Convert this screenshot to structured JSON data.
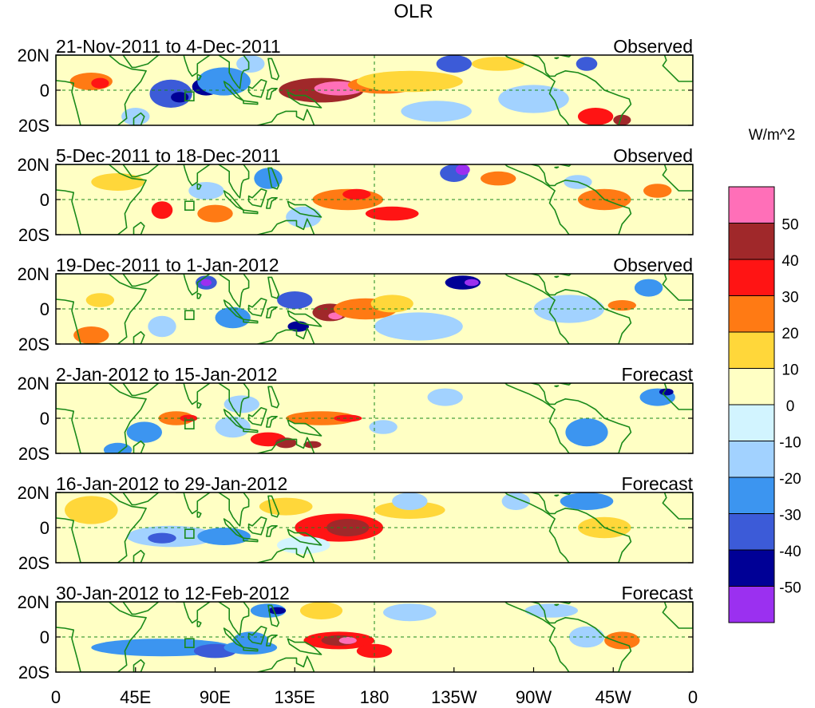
{
  "title": "OLR",
  "units": "W/m^2",
  "chart_data": {
    "type": "heatmap",
    "variable": "OLR anomaly",
    "lat_labels": [
      "20N",
      "0",
      "20S"
    ],
    "lon_labels": [
      "0",
      "45E",
      "90E",
      "135E",
      "180",
      "135W",
      "90W",
      "45W",
      "0"
    ],
    "colorbar": {
      "levels": [
        50,
        40,
        30,
        20,
        10,
        0,
        -10,
        -20,
        -30,
        -40,
        -50
      ],
      "colors": [
        "#ff6fb8",
        "#a0282a",
        "#ff1414",
        "#ff7a14",
        "#ffd73a",
        "#ffffc4",
        "#d2f4ff",
        "#a2d2ff",
        "#3c95f0",
        "#3c5bd8",
        "#000096",
        "#9b30f0"
      ]
    },
    "panels": [
      {
        "period": "21-Nov-2011 to 4-Dec-2011",
        "kind": "Observed",
        "blobs": [
          [
            150,
            0,
            24,
            7,
            45
          ],
          [
            160,
            1,
            14,
            4,
            55
          ],
          [
            185,
            3,
            20,
            5,
            20
          ],
          [
            200,
            5,
            30,
            6,
            15
          ],
          [
            20,
            5,
            12,
            5,
            28
          ],
          [
            25,
            4,
            5,
            3,
            38
          ],
          [
            65,
            -2,
            12,
            8,
            -32
          ],
          [
            85,
            2,
            8,
            5,
            -42
          ],
          [
            70,
            -4,
            5,
            3,
            -44
          ],
          [
            95,
            5,
            15,
            8,
            -22
          ],
          [
            110,
            15,
            8,
            5,
            -18
          ],
          [
            225,
            15,
            10,
            5,
            -36
          ],
          [
            250,
            15,
            15,
            4,
            18
          ],
          [
            270,
            -5,
            20,
            8,
            -15
          ],
          [
            300,
            15,
            6,
            4,
            -32
          ],
          [
            305,
            -15,
            10,
            5,
            30
          ],
          [
            320,
            -17,
            5,
            3,
            42
          ],
          [
            215,
            -12,
            20,
            6,
            -12
          ],
          [
            45,
            -15,
            8,
            5,
            -15
          ]
        ]
      },
      {
        "period": "5-Dec-2011 to 18-Dec-2011",
        "kind": "Observed",
        "blobs": [
          [
            165,
            0,
            20,
            6,
            25
          ],
          [
            190,
            -8,
            15,
            4,
            30
          ],
          [
            170,
            3,
            8,
            3,
            36
          ],
          [
            225,
            15,
            8,
            5,
            -38
          ],
          [
            230,
            17,
            4,
            3,
            -55
          ],
          [
            60,
            -6,
            6,
            5,
            30
          ],
          [
            90,
            -8,
            10,
            5,
            22
          ],
          [
            120,
            12,
            8,
            6,
            -30
          ],
          [
            85,
            5,
            10,
            5,
            -15
          ],
          [
            295,
            10,
            8,
            4,
            -20
          ],
          [
            310,
            0,
            15,
            6,
            22
          ],
          [
            340,
            5,
            8,
            4,
            20
          ],
          [
            35,
            10,
            15,
            5,
            14
          ],
          [
            250,
            12,
            10,
            4,
            20
          ],
          [
            140,
            -10,
            10,
            6,
            -15
          ]
        ]
      },
      {
        "period": "19-Dec-2011 to 1-Jan-2012",
        "kind": "Observed",
        "blobs": [
          [
            155,
            -2,
            10,
            5,
            43
          ],
          [
            158,
            -4,
            4,
            2,
            55
          ],
          [
            175,
            0,
            18,
            6,
            22
          ],
          [
            190,
            3,
            12,
            5,
            18
          ],
          [
            85,
            15,
            6,
            4,
            -40
          ],
          [
            85,
            15,
            3,
            2,
            -55
          ],
          [
            135,
            5,
            10,
            5,
            -35
          ],
          [
            137,
            -10,
            6,
            3,
            -45
          ],
          [
            100,
            -5,
            10,
            6,
            -30
          ],
          [
            60,
            -10,
            8,
            6,
            -15
          ],
          [
            230,
            15,
            10,
            4,
            -42
          ],
          [
            235,
            15,
            4,
            2,
            -55
          ],
          [
            205,
            -10,
            25,
            8,
            -15
          ],
          [
            290,
            0,
            20,
            8,
            -12
          ],
          [
            320,
            2,
            8,
            3,
            25
          ],
          [
            20,
            -15,
            10,
            5,
            28
          ],
          [
            25,
            5,
            8,
            4,
            12
          ],
          [
            335,
            12,
            8,
            5,
            -25
          ]
        ]
      },
      {
        "period": "2-Jan-2012 to 15-Jan-2012",
        "kind": "Forecast",
        "blobs": [
          [
            68,
            0,
            10,
            4,
            28
          ],
          [
            75,
            0,
            5,
            2,
            38
          ],
          [
            150,
            0,
            20,
            4,
            25
          ],
          [
            165,
            0,
            8,
            2,
            36
          ],
          [
            120,
            -12,
            10,
            4,
            30
          ],
          [
            130,
            -14,
            6,
            3,
            40
          ],
          [
            145,
            -15,
            5,
            2,
            44
          ],
          [
            100,
            -5,
            10,
            6,
            -20
          ],
          [
            105,
            8,
            10,
            5,
            -18
          ],
          [
            50,
            -8,
            10,
            6,
            -28
          ],
          [
            35,
            -18,
            8,
            4,
            -30
          ],
          [
            220,
            12,
            10,
            5,
            -18
          ],
          [
            300,
            -8,
            12,
            8,
            -25
          ],
          [
            340,
            12,
            10,
            5,
            -30
          ],
          [
            345,
            15,
            4,
            2,
            -45
          ],
          [
            185,
            -5,
            8,
            4,
            -18
          ]
        ]
      },
      {
        "period": "16-Jan-2012 to 29-Jan-2012",
        "kind": "Forecast",
        "blobs": [
          [
            160,
            0,
            25,
            8,
            30
          ],
          [
            165,
            0,
            12,
            5,
            40
          ],
          [
            200,
            10,
            20,
            5,
            12
          ],
          [
            130,
            12,
            15,
            5,
            18
          ],
          [
            65,
            -5,
            25,
            6,
            -20
          ],
          [
            60,
            -6,
            8,
            3,
            -38
          ],
          [
            95,
            -5,
            15,
            5,
            -22
          ],
          [
            200,
            15,
            10,
            5,
            -20
          ],
          [
            260,
            15,
            8,
            5,
            -15
          ],
          [
            300,
            15,
            15,
            5,
            -25
          ],
          [
            310,
            0,
            15,
            6,
            14
          ],
          [
            20,
            10,
            15,
            8,
            12
          ],
          [
            140,
            -10,
            15,
            5,
            -10
          ]
        ]
      },
      {
        "period": "30-Jan-2012 to 12-Feb-2012",
        "kind": "Forecast",
        "blobs": [
          [
            160,
            -2,
            20,
            5,
            38
          ],
          [
            160,
            -2,
            10,
            3,
            48
          ],
          [
            165,
            -2,
            5,
            2,
            55
          ],
          [
            180,
            -8,
            10,
            4,
            30
          ],
          [
            60,
            -6,
            40,
            5,
            -25
          ],
          [
            90,
            -8,
            12,
            4,
            -38
          ],
          [
            110,
            -6,
            15,
            4,
            -30
          ],
          [
            120,
            15,
            10,
            4,
            -30
          ],
          [
            125,
            15,
            5,
            2,
            -50
          ],
          [
            110,
            -2,
            10,
            5,
            -22
          ],
          [
            200,
            14,
            15,
            5,
            -15
          ],
          [
            280,
            15,
            15,
            4,
            -18
          ],
          [
            300,
            0,
            10,
            6,
            -15
          ],
          [
            320,
            -2,
            10,
            5,
            20
          ],
          [
            150,
            15,
            12,
            5,
            14
          ],
          [
            250,
            -12,
            20,
            6,
            8
          ]
        ]
      }
    ]
  }
}
